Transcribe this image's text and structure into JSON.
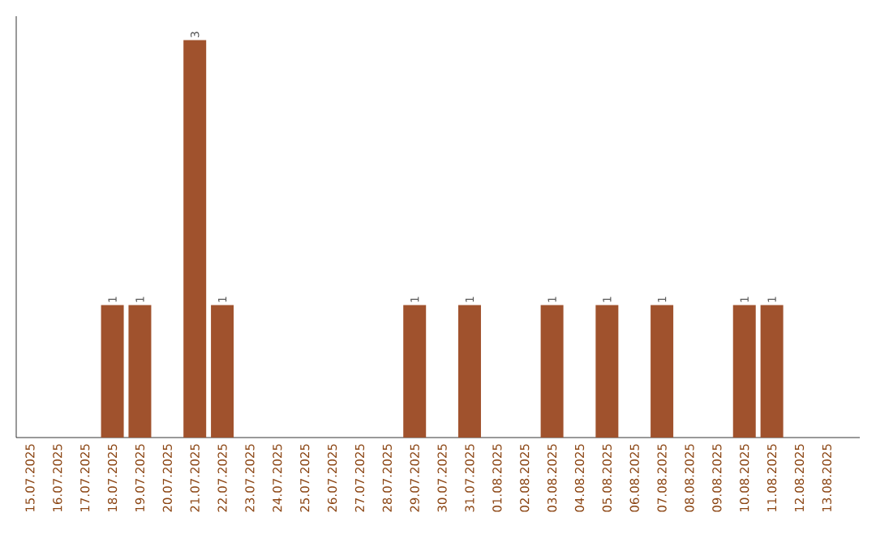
{
  "chart_data": {
    "type": "bar",
    "categories": [
      "15.07.2025",
      "16.07.2025",
      "17.07.2025",
      "18.07.2025",
      "19.07.2025",
      "20.07.2025",
      "21.07.2025",
      "22.07.2025",
      "23.07.2025",
      "24.07.2025",
      "25.07.2025",
      "26.07.2025",
      "27.07.2025",
      "28.07.2025",
      "29.07.2025",
      "30.07.2025",
      "31.07.2025",
      "01.08.2025",
      "02.08.2025",
      "03.08.2025",
      "04.08.2025",
      "05.08.2025",
      "06.08.2025",
      "07.08.2025",
      "08.08.2025",
      "09.08.2025",
      "10.08.2025",
      "11.08.2025",
      "12.08.2025",
      "13.08.2025"
    ],
    "values": [
      0,
      0,
      0,
      1,
      1,
      0,
      3,
      1,
      0,
      0,
      0,
      0,
      0,
      0,
      1,
      0,
      1,
      0,
      0,
      1,
      0,
      1,
      0,
      1,
      0,
      0,
      1,
      1,
      0,
      0
    ],
    "value_labels": [
      null,
      null,
      null,
      "1",
      "1",
      null,
      "3",
      "1",
      null,
      null,
      null,
      null,
      null,
      null,
      "1",
      null,
      "1",
      null,
      null,
      "1",
      null,
      "1",
      null,
      "1",
      null,
      null,
      "1",
      "1",
      null,
      null
    ],
    "color": "#a0522d",
    "ylim": [
      0,
      3
    ],
    "tick_labels": "x"
  }
}
